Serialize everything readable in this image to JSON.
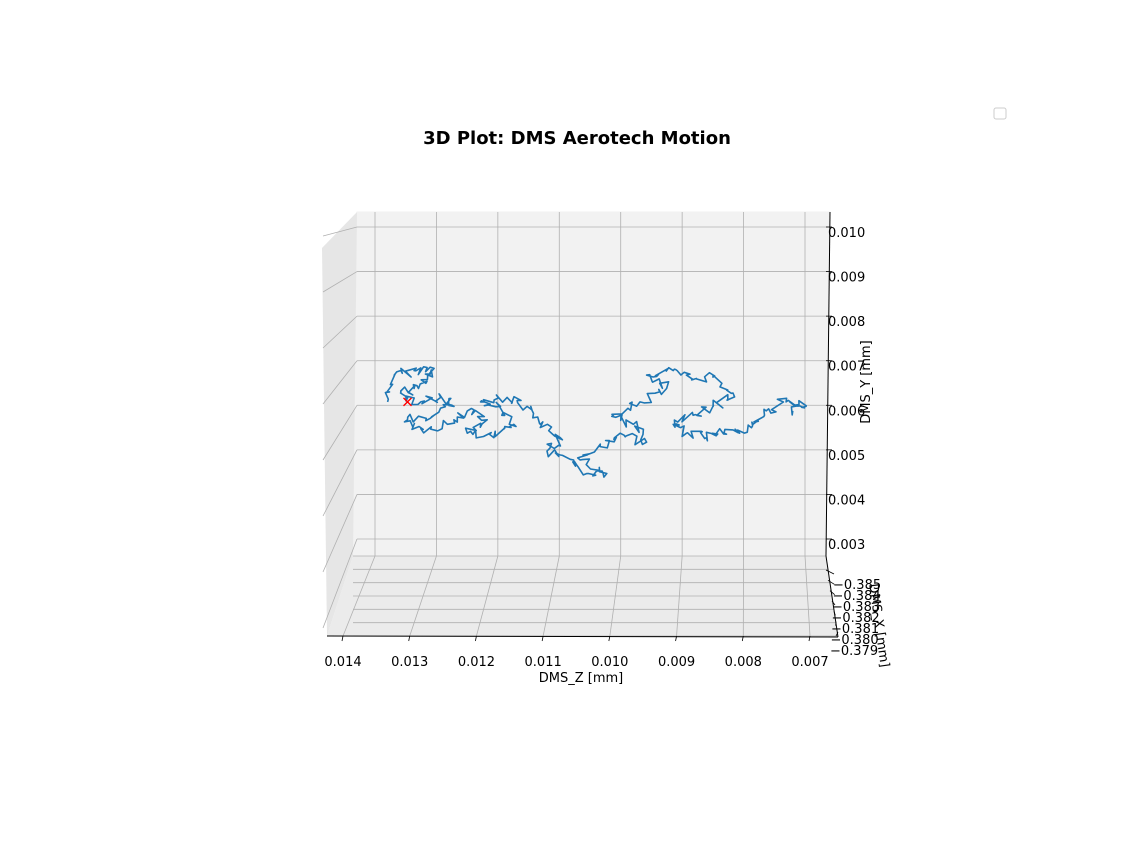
{
  "chart_data": {
    "type": "line",
    "projection": "3d",
    "title": "3D Plot: DMS Aerotech Motion",
    "xlabel": "DMS_Z [mm]",
    "ylabel": "DMS_Y [mm]",
    "zlabel": "DMS_X [mm]",
    "z_axis_ticks": [
      "0.014",
      "0.013",
      "0.012",
      "0.011",
      "0.010",
      "0.009",
      "0.008",
      "0.007"
    ],
    "y_axis_ticks": [
      "0.010",
      "0.009",
      "0.008",
      "0.007",
      "0.006",
      "0.005",
      "0.004",
      "0.003"
    ],
    "x_axis_ticks": [
      "−0.385",
      "−0.384",
      "−0.383",
      "−0.382",
      "−0.381",
      "−0.380",
      "−0.379"
    ],
    "z_range": [
      0.007,
      0.014
    ],
    "y_range": [
      0.003,
      0.01
    ],
    "x_range": [
      -0.385,
      -0.379
    ],
    "grid": true,
    "legend": {
      "placement": "top-right",
      "entries": []
    },
    "series": [
      {
        "color": "#1f77b4",
        "x_value_approx": -0.382,
        "points_z_y": [
          [
            0.0136,
            0.0062
          ],
          [
            0.0135,
            0.0068
          ],
          [
            0.0132,
            0.0069
          ],
          [
            0.0129,
            0.00695
          ],
          [
            0.013,
            0.0067
          ],
          [
            0.0132,
            0.0065
          ],
          [
            0.0134,
            0.0064
          ],
          [
            0.0131,
            0.0062
          ],
          [
            0.0128,
            0.0063
          ],
          [
            0.0126,
            0.0061
          ],
          [
            0.0129,
            0.0059
          ],
          [
            0.0133,
            0.0058
          ],
          [
            0.0131,
            0.0056
          ],
          [
            0.0127,
            0.0057
          ],
          [
            0.0124,
            0.006
          ],
          [
            0.0121,
            0.0058
          ],
          [
            0.0124,
            0.0055
          ],
          [
            0.012,
            0.0054
          ],
          [
            0.0117,
            0.0057
          ],
          [
            0.0119,
            0.0061
          ],
          [
            0.0122,
            0.0062
          ],
          [
            0.0118,
            0.0063
          ],
          [
            0.0115,
            0.0061
          ],
          [
            0.0113,
            0.0057
          ],
          [
            0.011,
            0.0054
          ],
          [
            0.0112,
            0.0051
          ],
          [
            0.0108,
            0.0049
          ],
          [
            0.0106,
            0.0046
          ],
          [
            0.0103,
            0.0046
          ],
          [
            0.0107,
            0.0049
          ],
          [
            0.0104,
            0.0052
          ],
          [
            0.0101,
            0.0055
          ],
          [
            0.0097,
            0.0053
          ],
          [
            0.0099,
            0.0057
          ],
          [
            0.0102,
            0.0059
          ],
          [
            0.0098,
            0.0062
          ],
          [
            0.0094,
            0.0065
          ],
          [
            0.0097,
            0.0068
          ],
          [
            0.0093,
            0.0069
          ],
          [
            0.009,
            0.0067
          ],
          [
            0.0087,
            0.0068
          ],
          [
            0.0084,
            0.0064
          ],
          [
            0.0087,
            0.0061
          ],
          [
            0.009,
            0.0059
          ],
          [
            0.0093,
            0.0057
          ],
          [
            0.0091,
            0.0055
          ],
          [
            0.0088,
            0.0054
          ],
          [
            0.0086,
            0.0056
          ],
          [
            0.0083,
            0.0055
          ],
          [
            0.0081,
            0.0057
          ],
          [
            0.0079,
            0.006
          ],
          [
            0.0076,
            0.0062
          ],
          [
            0.0073,
            0.0061
          ],
          [
            0.0075,
            0.006
          ]
        ]
      },
      {
        "name": "",
        "marker": "x",
        "color": "#ff0000",
        "points_z_y": [
          [
            0.0133,
            0.0062
          ]
        ]
      }
    ]
  }
}
